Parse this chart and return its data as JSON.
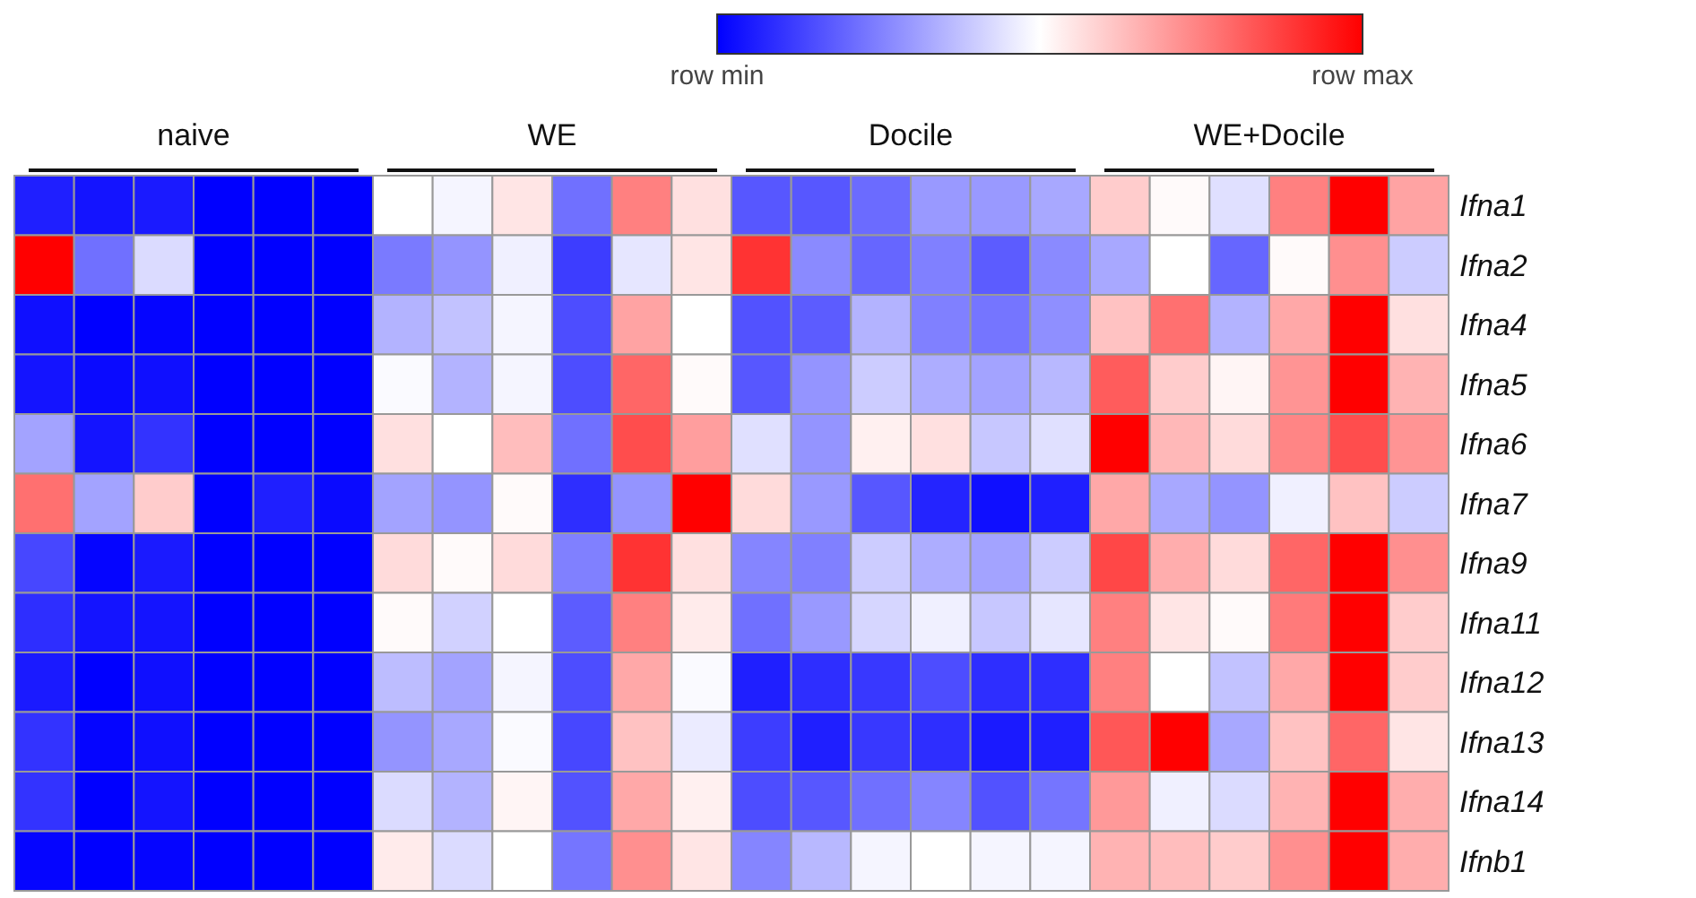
{
  "chart_data": {
    "type": "heatmap",
    "categories": [
      null,
      null,
      null,
      null,
      null,
      null,
      null,
      null,
      null,
      null,
      null,
      null,
      null,
      null,
      null,
      null,
      null,
      null,
      null,
      null,
      null,
      null,
      null,
      null
    ],
    "y_categories": [
      "Ifna1",
      "Ifna2",
      "Ifna4",
      "Ifna5",
      "Ifna6",
      "Ifna7",
      "Ifna9",
      "Ifna11",
      "Ifna12",
      "Ifna13",
      "Ifna14",
      "Ifnb1"
    ],
    "annotations": [
      "naive",
      "WE",
      "Docile",
      "WE+Docile"
    ],
    "clim": [
      0,
      1
    ],
    "cticks": [
      {
        "value": 0,
        "label": "row min"
      },
      {
        "value": 1,
        "label": "row max"
      }
    ],
    "cells": [
      [
        0.06,
        0.04,
        0.05,
        0,
        0,
        0,
        0.5,
        0.48,
        0.55,
        0.22,
        0.75,
        0.56,
        0.17,
        0.17,
        0.21,
        0.3,
        0.3,
        0.33,
        0.6,
        0.51,
        0.44,
        0.75,
        1,
        0.68
      ],
      [
        1,
        0.22,
        0.43,
        0,
        0,
        0,
        0.24,
        0.29,
        0.47,
        0.12,
        0.45,
        0.55,
        0.9,
        0.27,
        0.2,
        0.25,
        0.18,
        0.27,
        0.33,
        0.5,
        0.2,
        0.51,
        0.72,
        0.4
      ],
      [
        0.03,
        0,
        0.01,
        0,
        0,
        0,
        0.35,
        0.38,
        0.48,
        0.15,
        0.68,
        0.5,
        0.16,
        0.18,
        0.35,
        0.25,
        0.23,
        0.28,
        0.62,
        0.78,
        0.35,
        0.67,
        1,
        0.56
      ],
      [
        0.04,
        0.02,
        0.03,
        0,
        0,
        0,
        0.49,
        0.35,
        0.48,
        0.15,
        0.8,
        0.51,
        0.17,
        0.29,
        0.4,
        0.34,
        0.32,
        0.36,
        0.82,
        0.6,
        0.52,
        0.71,
        1,
        0.65
      ],
      [
        0.32,
        0.04,
        0.1,
        0,
        0,
        0,
        0.56,
        0.5,
        0.63,
        0.22,
        0.85,
        0.69,
        0.44,
        0.29,
        0.53,
        0.56,
        0.39,
        0.44,
        1,
        0.64,
        0.57,
        0.74,
        0.85,
        0.71
      ],
      [
        0.78,
        0.32,
        0.6,
        0,
        0.06,
        0.02,
        0.32,
        0.29,
        0.51,
        0.09,
        0.29,
        1,
        0.57,
        0.3,
        0.17,
        0.07,
        0.03,
        0.06,
        0.67,
        0.33,
        0.29,
        0.47,
        0.62,
        0.4
      ],
      [
        0.14,
        0.01,
        0.05,
        0,
        0,
        0,
        0.57,
        0.51,
        0.57,
        0.25,
        0.9,
        0.56,
        0.26,
        0.25,
        0.4,
        0.34,
        0.32,
        0.4,
        0.86,
        0.66,
        0.57,
        0.8,
        1,
        0.72
      ],
      [
        0.09,
        0.04,
        0.04,
        0,
        0,
        0,
        0.51,
        0.41,
        0.5,
        0.18,
        0.75,
        0.54,
        0.22,
        0.3,
        0.42,
        0.47,
        0.39,
        0.45,
        0.75,
        0.55,
        0.51,
        0.76,
        1,
        0.6
      ],
      [
        0.05,
        0,
        0.03,
        0,
        0,
        0,
        0.37,
        0.32,
        0.48,
        0.15,
        0.67,
        0.49,
        0.06,
        0.09,
        0.11,
        0.15,
        0.09,
        0.09,
        0.75,
        0.5,
        0.38,
        0.67,
        1,
        0.6
      ],
      [
        0.1,
        0.01,
        0.03,
        0,
        0,
        0,
        0.29,
        0.33,
        0.49,
        0.14,
        0.62,
        0.46,
        0.12,
        0.06,
        0.11,
        0.09,
        0.05,
        0.06,
        0.83,
        1,
        0.33,
        0.62,
        0.8,
        0.55
      ],
      [
        0.1,
        0,
        0.04,
        0,
        0,
        0,
        0.43,
        0.35,
        0.52,
        0.16,
        0.67,
        0.53,
        0.15,
        0.17,
        0.22,
        0.26,
        0.16,
        0.23,
        0.7,
        0.47,
        0.43,
        0.65,
        1,
        0.66
      ],
      [
        0.01,
        0,
        0.01,
        0,
        0,
        0,
        0.54,
        0.43,
        0.5,
        0.23,
        0.72,
        0.55,
        0.26,
        0.36,
        0.48,
        0.5,
        0.48,
        0.48,
        0.65,
        0.63,
        0.6,
        0.72,
        1,
        0.66
      ]
    ]
  }
}
